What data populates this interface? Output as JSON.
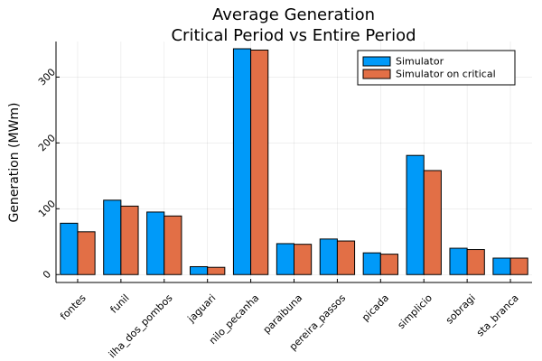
{
  "chart_data": {
    "type": "bar",
    "title": "Average Generation",
    "subtitle": "Critical Period vs Entire Period",
    "xlabel": "",
    "ylabel": "Generation (MWm)",
    "categories": [
      "fontes",
      "funil",
      "ilha_dos_pombos",
      "jaguari",
      "nilo_pecanha",
      "paraibuna",
      "pereira_passos",
      "picada",
      "simplicio",
      "sobragi",
      "sta_branca"
    ],
    "series": [
      {
        "name": "Simulator",
        "color": "#009af9",
        "values": [
          78,
          113,
          95,
          12,
          343,
          47,
          54,
          33,
          181,
          40,
          25
        ]
      },
      {
        "name": "Simulator on critical",
        "color": "#e26f46",
        "values": [
          65,
          104,
          89,
          11,
          341,
          46,
          51,
          31,
          158,
          38,
          25
        ]
      }
    ],
    "ylim": [
      -12,
      354
    ],
    "yticks": [
      0,
      100,
      200,
      300
    ],
    "grid": true,
    "legend_position": "top-right"
  }
}
